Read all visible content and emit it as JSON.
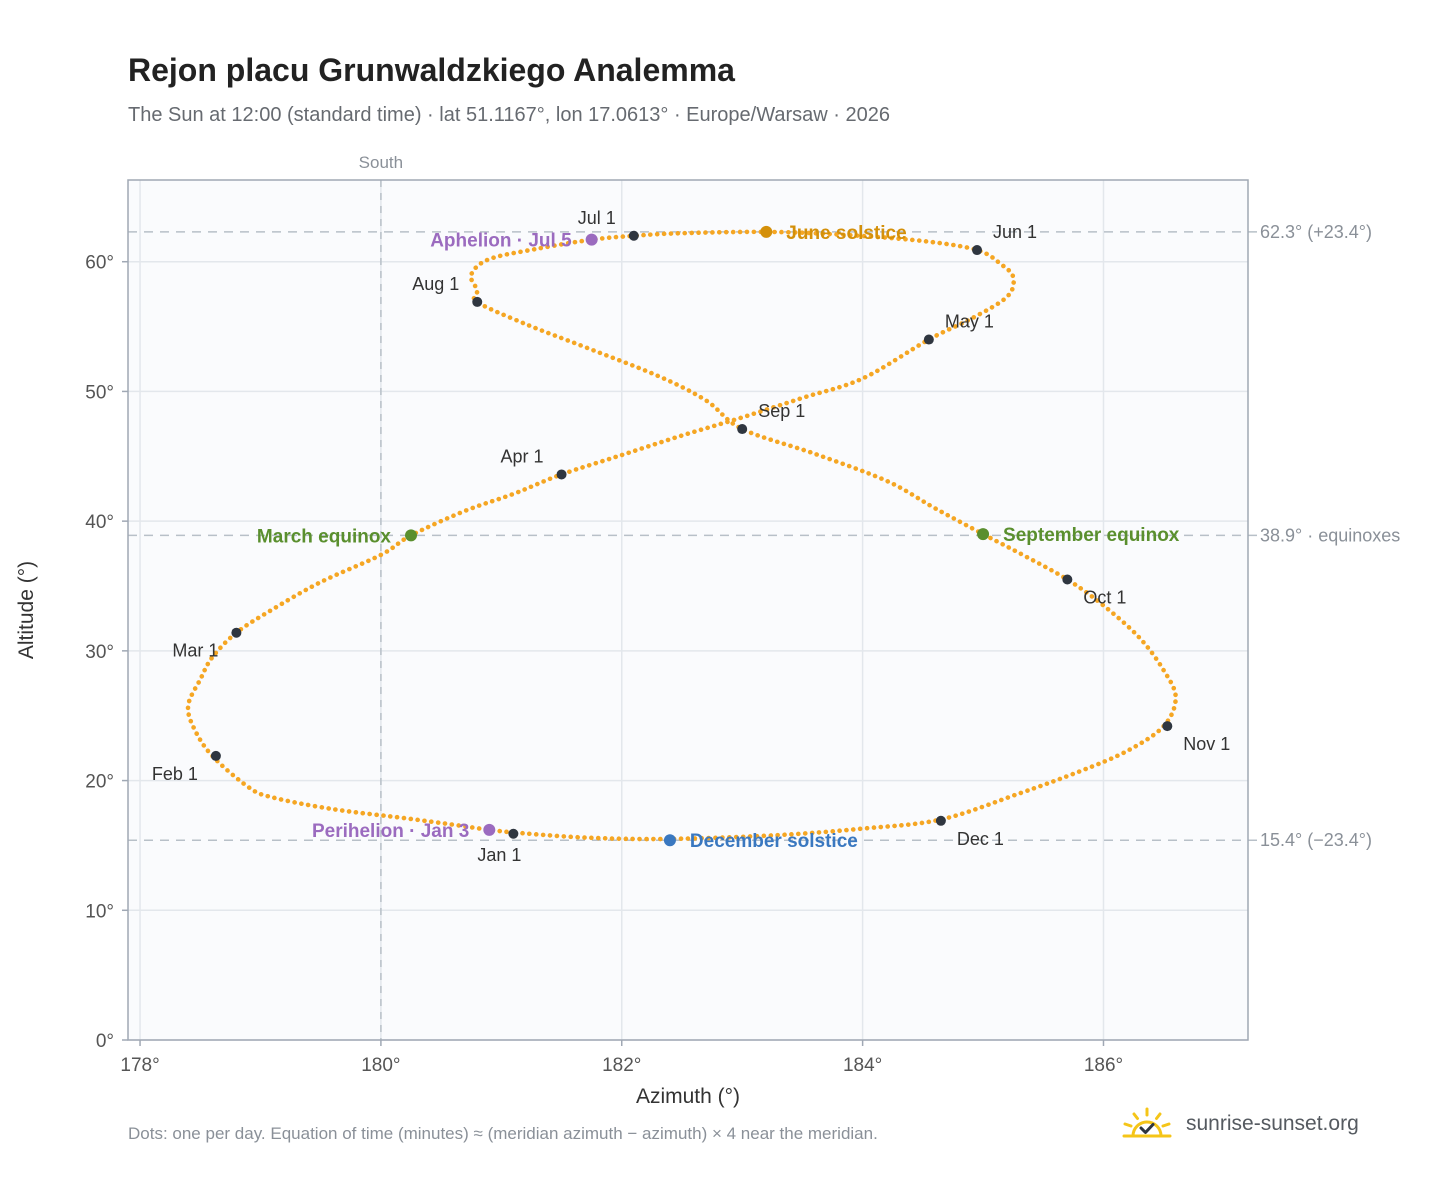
{
  "header": {
    "title": "Rejon placu Grunwaldzkiego Analemma",
    "subtitle": "The Sun at 12:00 (standard time) · lat 51.1167°, lon 17.0613° · Europe/Warsaw · 2026"
  },
  "footer": {
    "note": "Dots: one per day. Equation of time (minutes) ≈ (meridian azimuth − azimuth) × 4 near the meridian.",
    "brand": "sunrise-sunset.org",
    "brand_icon": "sun-check-icon"
  },
  "colors": {
    "path": "#f5a623",
    "month_marker": "#2f3640",
    "equinox": "#5a8f2e",
    "solstice_june": "#d4900a",
    "solstice_december": "#3a78c0",
    "apsis": "#9b6bbf",
    "grid": "#e3e7ec",
    "plot_bg": "#fafbfd",
    "frame": "#a0a8b4",
    "reference_line": "#b8c0c8"
  },
  "chart_data": {
    "type": "scatter",
    "xlabel": "Azimuth (°)",
    "ylabel": "Altitude (°)",
    "xlim": [
      177.9,
      187.2
    ],
    "ylim": [
      0,
      66.3
    ],
    "x_ticks": [
      178,
      180,
      182,
      184,
      186
    ],
    "x_tick_labels": [
      "178°",
      "180°",
      "182°",
      "184°",
      "186°"
    ],
    "y_ticks": [
      0,
      10,
      20,
      30,
      40,
      50,
      60
    ],
    "y_tick_labels": [
      "0°",
      "10°",
      "20°",
      "30°",
      "40°",
      "50°",
      "60°"
    ],
    "grid": true,
    "meridian": {
      "azimuth": 180,
      "label": "South"
    },
    "reference_lines": [
      {
        "altitude": 62.3,
        "label": "62.3° (+23.4°)"
      },
      {
        "altitude": 38.9,
        "label": "38.9° · equinoxes"
      },
      {
        "altitude": 15.4,
        "label": "15.4° (−23.4°)"
      }
    ],
    "path_points": [
      [
        181.1,
        16.0
      ],
      [
        180.9,
        16.2
      ],
      [
        180.6,
        16.6
      ],
      [
        180.2,
        17.1
      ],
      [
        179.6,
        17.8
      ],
      [
        179.1,
        18.7
      ],
      [
        178.9,
        19.5
      ],
      [
        178.6,
        21.9
      ],
      [
        178.45,
        24.0
      ],
      [
        178.4,
        25.8
      ],
      [
        178.5,
        27.8
      ],
      [
        178.6,
        29.5
      ],
      [
        178.8,
        31.4
      ],
      [
        179.1,
        33.2
      ],
      [
        179.5,
        35.3
      ],
      [
        180.0,
        37.4
      ],
      [
        180.25,
        38.9
      ],
      [
        180.7,
        40.8
      ],
      [
        181.1,
        42.1
      ],
      [
        181.5,
        43.6
      ],
      [
        182.0,
        45.1
      ],
      [
        182.5,
        46.6
      ],
      [
        183.0,
        48.0
      ],
      [
        183.5,
        49.5
      ],
      [
        184.0,
        51.0
      ],
      [
        184.55,
        54.0
      ],
      [
        184.9,
        55.6
      ],
      [
        185.2,
        57.3
      ],
      [
        185.25,
        58.8
      ],
      [
        185.15,
        59.8
      ],
      [
        184.95,
        60.9
      ],
      [
        184.5,
        61.6
      ],
      [
        183.8,
        62.1
      ],
      [
        183.2,
        62.3
      ],
      [
        182.5,
        62.2
      ],
      [
        182.1,
        62.0
      ],
      [
        181.75,
        61.7
      ],
      [
        181.3,
        61.0
      ],
      [
        180.9,
        60.2
      ],
      [
        180.75,
        59.0
      ],
      [
        180.8,
        57.8
      ],
      [
        180.8,
        56.9
      ],
      [
        181.2,
        55.2
      ],
      [
        181.7,
        53.4
      ],
      [
        182.3,
        51.2
      ],
      [
        182.7,
        49.3
      ],
      [
        183.0,
        47.1
      ],
      [
        183.6,
        45.2
      ],
      [
        184.2,
        43.1
      ],
      [
        184.6,
        41.0
      ],
      [
        185.0,
        39.0
      ],
      [
        185.35,
        37.3
      ],
      [
        185.7,
        35.5
      ],
      [
        186.0,
        33.5
      ],
      [
        186.3,
        31.0
      ],
      [
        186.5,
        28.5
      ],
      [
        186.6,
        26.4
      ],
      [
        186.5,
        24.2
      ],
      [
        186.2,
        22.3
      ],
      [
        185.8,
        20.7
      ],
      [
        185.3,
        19.0
      ],
      [
        184.65,
        17.0
      ],
      [
        184.0,
        16.3
      ],
      [
        183.3,
        15.8
      ],
      [
        182.4,
        15.5
      ],
      [
        181.7,
        15.6
      ],
      [
        181.1,
        16.0
      ]
    ],
    "month_markers": [
      {
        "label": "Jan 1",
        "azimuth": 181.1,
        "altitude": 15.9,
        "label_pos": "below"
      },
      {
        "label": "Feb 1",
        "azimuth": 178.63,
        "altitude": 21.9,
        "label_pos": "below-left"
      },
      {
        "label": "Mar 1",
        "azimuth": 178.8,
        "altitude": 31.4,
        "label_pos": "below-left"
      },
      {
        "label": "Apr 1",
        "azimuth": 181.5,
        "altitude": 43.6,
        "label_pos": "above-left"
      },
      {
        "label": "May 1",
        "azimuth": 184.55,
        "altitude": 54.0,
        "label_pos": "above-right"
      },
      {
        "label": "Jun 1",
        "azimuth": 184.95,
        "altitude": 60.9,
        "label_pos": "above-right"
      },
      {
        "label": "Jul 1",
        "azimuth": 182.1,
        "altitude": 62.0,
        "label_pos": "above-left"
      },
      {
        "label": "Aug 1",
        "azimuth": 180.8,
        "altitude": 56.9,
        "label_pos": "above-left"
      },
      {
        "label": "Sep 1",
        "azimuth": 183.0,
        "altitude": 47.1,
        "label_pos": "above-right"
      },
      {
        "label": "Oct 1",
        "azimuth": 185.7,
        "altitude": 35.5,
        "label_pos": "below-right"
      },
      {
        "label": "Nov 1",
        "azimuth": 186.53,
        "altitude": 24.2,
        "label_pos": "below-right"
      },
      {
        "label": "Dec 1",
        "azimuth": 184.65,
        "altitude": 16.9,
        "label_pos": "below-right"
      }
    ],
    "events": [
      {
        "label": "June solstice",
        "azimuth": 183.2,
        "altitude": 62.3,
        "kind": "solstice_june",
        "label_pos": "right"
      },
      {
        "label": "December solstice",
        "azimuth": 182.4,
        "altitude": 15.4,
        "kind": "solstice_december",
        "label_pos": "right"
      },
      {
        "label": "March equinox",
        "azimuth": 180.25,
        "altitude": 38.9,
        "kind": "equinox",
        "label_pos": "left"
      },
      {
        "label": "September equinox",
        "azimuth": 185.0,
        "altitude": 39.0,
        "kind": "equinox",
        "label_pos": "right"
      },
      {
        "label": "Aphelion · Jul 5",
        "azimuth": 181.75,
        "altitude": 61.7,
        "kind": "apsis",
        "label_pos": "left"
      },
      {
        "label": "Perihelion · Jan 3",
        "azimuth": 180.9,
        "altitude": 16.2,
        "kind": "apsis",
        "label_pos": "left"
      }
    ]
  }
}
